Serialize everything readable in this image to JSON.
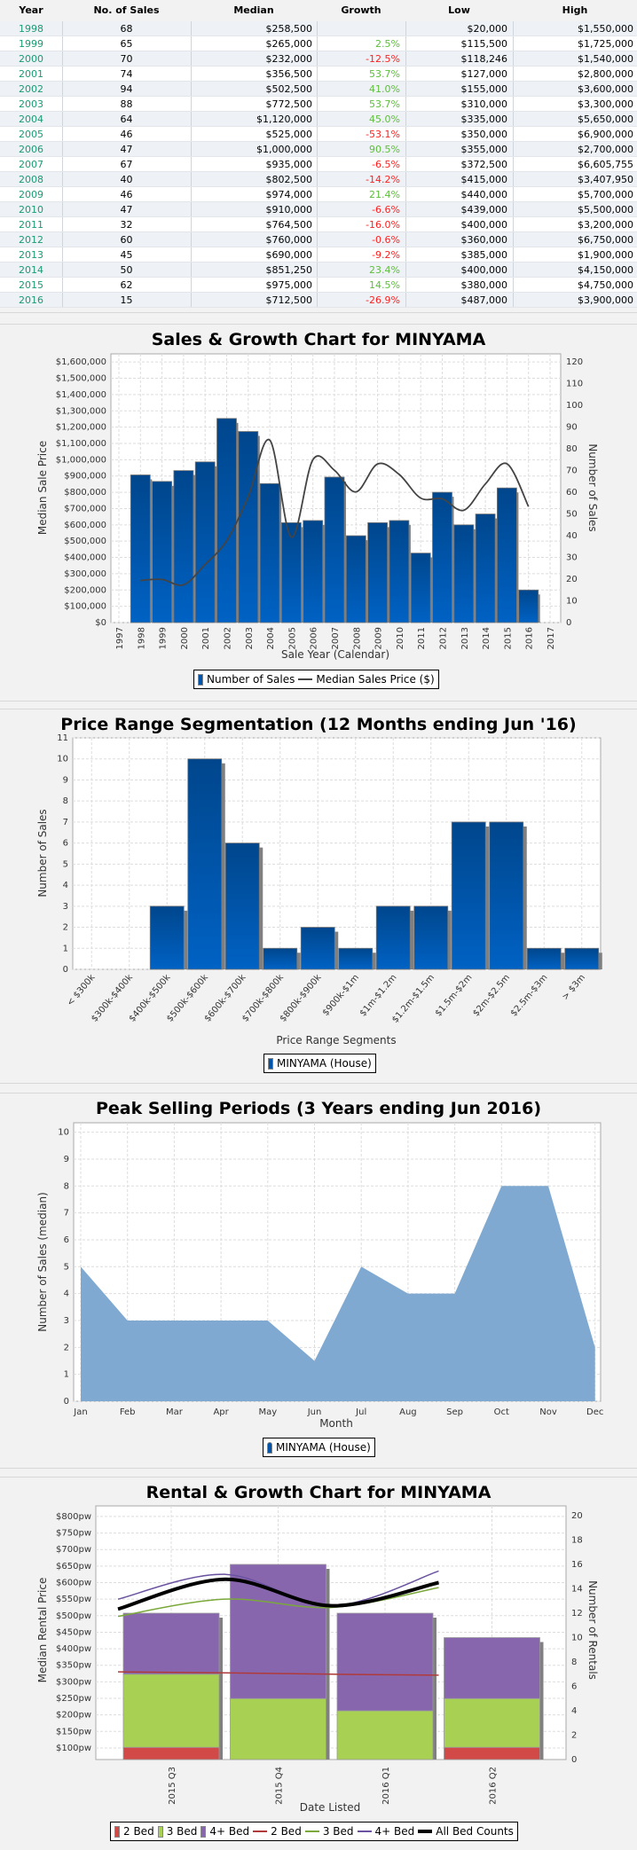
{
  "table": {
    "headers": [
      "Year",
      "No. of Sales",
      "Median",
      "Growth",
      "Low",
      "High"
    ],
    "rows": [
      {
        "year": "1998",
        "sales": "68",
        "median": "$258,500",
        "growth": "",
        "low": "$20,000",
        "high": "$1,550,000"
      },
      {
        "year": "1999",
        "sales": "65",
        "median": "$265,000",
        "growth": "2.5%",
        "low": "$115,500",
        "high": "$1,725,000"
      },
      {
        "year": "2000",
        "sales": "70",
        "median": "$232,000",
        "growth": "-12.5%",
        "low": "$118,246",
        "high": "$1,540,000"
      },
      {
        "year": "2001",
        "sales": "74",
        "median": "$356,500",
        "growth": "53.7%",
        "low": "$127,000",
        "high": "$2,800,000"
      },
      {
        "year": "2002",
        "sales": "94",
        "median": "$502,500",
        "growth": "41.0%",
        "low": "$155,000",
        "high": "$3,600,000"
      },
      {
        "year": "2003",
        "sales": "88",
        "median": "$772,500",
        "growth": "53.7%",
        "low": "$310,000",
        "high": "$3,300,000"
      },
      {
        "year": "2004",
        "sales": "64",
        "median": "$1,120,000",
        "growth": "45.0%",
        "low": "$335,000",
        "high": "$5,650,000"
      },
      {
        "year": "2005",
        "sales": "46",
        "median": "$525,000",
        "growth": "-53.1%",
        "low": "$350,000",
        "high": "$6,900,000"
      },
      {
        "year": "2006",
        "sales": "47",
        "median": "$1,000,000",
        "growth": "90.5%",
        "low": "$355,000",
        "high": "$2,700,000"
      },
      {
        "year": "2007",
        "sales": "67",
        "median": "$935,000",
        "growth": "-6.5%",
        "low": "$372,500",
        "high": "$6,605,755"
      },
      {
        "year": "2008",
        "sales": "40",
        "median": "$802,500",
        "growth": "-14.2%",
        "low": "$415,000",
        "high": "$3,407,950"
      },
      {
        "year": "2009",
        "sales": "46",
        "median": "$974,000",
        "growth": "21.4%",
        "low": "$440,000",
        "high": "$5,700,000"
      },
      {
        "year": "2010",
        "sales": "47",
        "median": "$910,000",
        "growth": "-6.6%",
        "low": "$439,000",
        "high": "$5,500,000"
      },
      {
        "year": "2011",
        "sales": "32",
        "median": "$764,500",
        "growth": "-16.0%",
        "low": "$400,000",
        "high": "$3,200,000"
      },
      {
        "year": "2012",
        "sales": "60",
        "median": "$760,000",
        "growth": "-0.6%",
        "low": "$360,000",
        "high": "$6,750,000"
      },
      {
        "year": "2013",
        "sales": "45",
        "median": "$690,000",
        "growth": "-9.2%",
        "low": "$385,000",
        "high": "$1,900,000"
      },
      {
        "year": "2014",
        "sales": "50",
        "median": "$851,250",
        "growth": "23.4%",
        "low": "$400,000",
        "high": "$4,150,000"
      },
      {
        "year": "2015",
        "sales": "62",
        "median": "$975,000",
        "growth": "14.5%",
        "low": "$380,000",
        "high": "$4,750,000"
      },
      {
        "year": "2016",
        "sales": "15",
        "median": "$712,500",
        "growth": "-26.9%",
        "low": "$487,000",
        "high": "$3,900,000"
      }
    ]
  },
  "colors": {
    "bar_top": "#00468c",
    "bar_bottom": "#0062c4",
    "shadow": "#808080",
    "line": "#444444",
    "area": "#7fa9d1",
    "bed2": "#d24a48",
    "bed3": "#a8d052",
    "bed4": "#8866ae",
    "line2": "#b03a3a",
    "line3": "#7aa83a",
    "line4": "#6a52a0",
    "lineAll": "#000000",
    "positive": "#5cbf3a",
    "negative": "#ff2020",
    "year": "#1a9a74"
  },
  "chart_data": [
    {
      "type": "bar+line",
      "title": "Sales & Growth Chart for MINYAMA",
      "xlabel": "Sale Year (Calendar)",
      "ylabel": "Median Sale Price",
      "y2label": "Number of Sales",
      "x_ticks": [
        "1997",
        "1998",
        "1999",
        "2000",
        "2001",
        "2002",
        "2003",
        "2004",
        "2005",
        "2006",
        "2007",
        "2008",
        "2009",
        "2010",
        "2011",
        "2012",
        "2013",
        "2014",
        "2015",
        "2016",
        "2017"
      ],
      "y_ticks": [
        "$0",
        "$100,000",
        "$200,000",
        "$300,000",
        "$400,000",
        "$500,000",
        "$600,000",
        "$700,000",
        "$800,000",
        "$900,000",
        "$1,000,000",
        "$1,100,000",
        "$1,200,000",
        "$1,300,000",
        "$1,400,000",
        "$1,500,000",
        "$1,600,000"
      ],
      "y2_ticks": [
        "0",
        "10",
        "20",
        "30",
        "40",
        "50",
        "60",
        "70",
        "80",
        "90",
        "100",
        "110",
        "120"
      ],
      "ylim": [
        0,
        1650000
      ],
      "y2lim": [
        0,
        123.75
      ],
      "categories": [
        1998,
        1999,
        2000,
        2001,
        2002,
        2003,
        2004,
        2005,
        2006,
        2007,
        2008,
        2009,
        2010,
        2011,
        2012,
        2013,
        2014,
        2015,
        2016
      ],
      "series": [
        {
          "name": "Number of Sales",
          "type": "bar",
          "axis": "right",
          "values": [
            68,
            65,
            70,
            74,
            94,
            88,
            64,
            46,
            47,
            67,
            40,
            46,
            47,
            32,
            60,
            45,
            50,
            62,
            15
          ]
        },
        {
          "name": "Median Sales Price ($)",
          "type": "line",
          "axis": "left",
          "values": [
            258500,
            265000,
            232000,
            356500,
            502500,
            772500,
            1120000,
            525000,
            1000000,
            935000,
            802500,
            974000,
            910000,
            764500,
            760000,
            690000,
            851250,
            975000,
            712500
          ]
        }
      ],
      "legend": [
        "Number of Sales",
        "Median Sales Price ($)"
      ],
      "legend_position": "bottom"
    },
    {
      "type": "bar",
      "title": "Price Range Segmentation (12 Months ending Jun '16)",
      "xlabel": "Price Range Segments",
      "ylabel": "Number of Sales",
      "categories": [
        "< $300k",
        "$300k-$400k",
        "$400k-$500k",
        "$500k-$600k",
        "$600k-$700k",
        "$700k-$800k",
        "$800k-$900k",
        "$900k-$1m",
        "$1m-$1.2m",
        "$1.2m-$1.5m",
        "$1.5m-$2m",
        "$2m-$2.5m",
        "$2.5m-$3m",
        "> $3m"
      ],
      "values": [
        0,
        0,
        3,
        10,
        6,
        1,
        2,
        1,
        3,
        3,
        7,
        7,
        1,
        1
      ],
      "y_ticks": [
        "0",
        "1",
        "2",
        "3",
        "4",
        "5",
        "6",
        "7",
        "8",
        "9",
        "10",
        "11"
      ],
      "ylim": [
        0,
        11
      ],
      "legend": [
        "MINYAMA (House)"
      ],
      "legend_position": "bottom"
    },
    {
      "type": "area",
      "title": "Peak Selling Periods (3 Years ending Jun 2016)",
      "xlabel": "Month",
      "ylabel": "Number of Sales (median)",
      "categories": [
        "Jan",
        "Feb",
        "Mar",
        "Apr",
        "May",
        "Jun",
        "Jul",
        "Aug",
        "Sep",
        "Oct",
        "Nov",
        "Dec"
      ],
      "values": [
        5,
        3,
        3,
        3,
        3,
        1.5,
        5,
        4,
        4,
        8,
        8,
        2
      ],
      "y_ticks": [
        "0",
        "1",
        "2",
        "3",
        "4",
        "5",
        "6",
        "7",
        "8",
        "9",
        "10"
      ],
      "ylim": [
        0,
        10.35
      ],
      "legend": [
        "MINYAMA (House)"
      ],
      "legend_position": "bottom"
    },
    {
      "type": "stacked-bar+line",
      "title": "Rental & Growth Chart for MINYAMA",
      "xlabel": "Date Listed",
      "ylabel": "Median Rental Price",
      "y2label": "Number of Rentals",
      "categories": [
        "2015 Q3",
        "2015 Q4",
        "2016 Q1",
        "2016 Q2"
      ],
      "y_ticks": [
        "$100pw",
        "$150pw",
        "$200pw",
        "$250pw",
        "$300pw",
        "$350pw",
        "$400pw",
        "$450pw",
        "$500pw",
        "$550pw",
        "$600pw",
        "$650pw",
        "$700pw",
        "$750pw",
        "$800pw"
      ],
      "y2_ticks": [
        "0",
        "2",
        "4",
        "6",
        "8",
        "10",
        "12",
        "14",
        "16",
        "18",
        "20"
      ],
      "ylim": [
        65,
        832
      ],
      "y2lim": [
        0,
        20.8
      ],
      "bars": [
        {
          "name": "2 Bed",
          "values": [
            1,
            0,
            0,
            1
          ]
        },
        {
          "name": "3 Bed",
          "values": [
            6,
            5,
            4,
            4
          ]
        },
        {
          "name": "4+ Bed",
          "values": [
            5,
            11,
            8,
            5
          ]
        }
      ],
      "lines": [
        {
          "name": "2 Bed",
          "values": [
            330,
            327,
            323,
            320
          ]
        },
        {
          "name": "3 Bed",
          "values": [
            498,
            550,
            525,
            585
          ]
        },
        {
          "name": "4+ Bed",
          "values": [
            550,
            625,
            530,
            635
          ]
        },
        {
          "name": "All Bed Counts",
          "values": [
            520,
            610,
            530,
            600
          ]
        }
      ],
      "legend": [
        "2 Bed",
        "3 Bed",
        "4+ Bed",
        "2 Bed",
        "3 Bed",
        "4+ Bed",
        "All Bed Counts"
      ],
      "legend_position": "bottom"
    }
  ]
}
